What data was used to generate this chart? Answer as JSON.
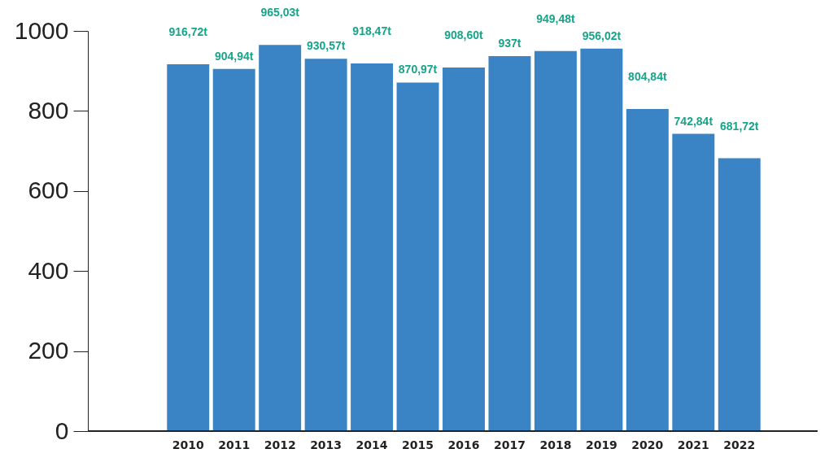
{
  "chart_data": {
    "type": "bar",
    "categories": [
      "2010",
      "2011",
      "2012",
      "2013",
      "2014",
      "2015",
      "2016",
      "2017",
      "2018",
      "2019",
      "2020",
      "2021",
      "2022"
    ],
    "values": [
      916.72,
      904.94,
      965.03,
      930.57,
      918.47,
      870.97,
      908.6,
      937,
      949.48,
      956.02,
      804.84,
      742.84,
      681.72
    ],
    "value_labels": [
      "916,72t",
      "904,94t",
      "965,03t",
      "930,57t",
      "918,47t",
      "870,97t",
      "908,60t",
      "937t",
      "949,48t",
      "956,02t",
      "804,84t",
      "742,84t",
      "681,72t"
    ],
    "color": "#3a83c5",
    "ylim": [
      0,
      1000
    ],
    "yticks": [
      0,
      200,
      400,
      600,
      800,
      1000
    ],
    "grid": false
  }
}
